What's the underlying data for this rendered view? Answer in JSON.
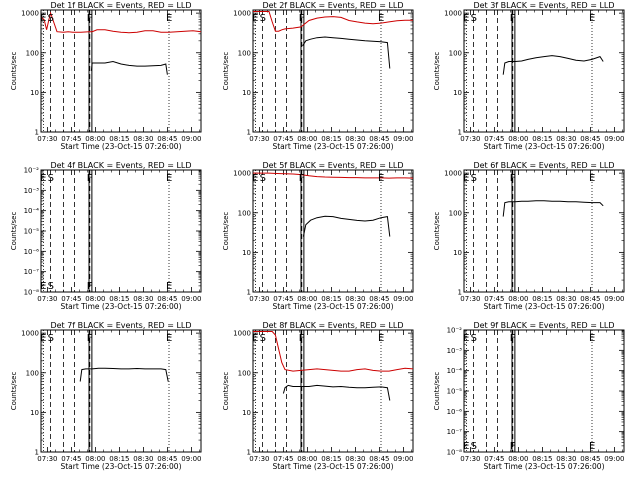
{
  "figure": {
    "xlabel": "Start Time (23-Oct-15 07:26:00)",
    "ylabel": "Counts/sec",
    "x_tick_labels": [
      "07:30",
      "07:45",
      "08:00",
      "08:15",
      "08:30",
      "08:45",
      "09:00"
    ],
    "x_ticks_min": [
      4,
      19,
      34,
      49,
      64,
      79,
      94
    ],
    "x_range_min": [
      0,
      100
    ],
    "colors": {
      "events": "#000000",
      "lld": "#cc0000"
    },
    "flags": [
      {
        "label": "E",
        "x_min": 1.3
      },
      {
        "label": "S",
        "x_min": 6
      },
      {
        "label": "F",
        "x_min": 30.5
      },
      {
        "label": "E",
        "x_min": 80
      }
    ],
    "dashed_lines_min": [
      6,
      14,
      21,
      30.5
    ],
    "dotted_lines_min": [
      1.5,
      80
    ],
    "solid_lines_min": [
      30,
      31.8
    ]
  },
  "chart_data": [
    {
      "type": "line",
      "title": "Det 1f BLACK = Events, RED = LLD",
      "yscale": "log",
      "ylim": [
        1,
        1200
      ],
      "ytick_labels": [
        "1",
        "10",
        "100",
        "1000"
      ],
      "ytick_values": [
        1,
        10,
        100,
        1000
      ],
      "series": [
        {
          "name": "Events",
          "color": "#000000",
          "x": [
            31.5,
            32,
            35,
            40,
            45,
            50,
            55,
            60,
            65,
            70,
            75,
            78,
            79
          ],
          "y": [
            35,
            55,
            55,
            55,
            60,
            52,
            48,
            46,
            46,
            47,
            48,
            52,
            28
          ]
        },
        {
          "name": "LLD",
          "color": "#cc0000",
          "x": [
            0,
            2,
            3.5,
            5,
            6,
            10,
            14,
            17,
            20,
            25,
            30,
            32,
            35,
            40,
            45,
            50,
            55,
            60,
            65,
            70,
            75,
            80,
            85,
            90,
            95,
            100
          ],
          "y": [
            800,
            680,
            380,
            700,
            1000,
            340,
            330,
            340,
            330,
            330,
            340,
            340,
            380,
            380,
            350,
            330,
            320,
            330,
            360,
            360,
            330,
            330,
            340,
            350,
            360,
            340
          ]
        }
      ]
    },
    {
      "type": "line",
      "title": "Det 2f BLACK = Events, RED = LLD",
      "yscale": "log",
      "ylim": [
        1,
        1200
      ],
      "ytick_labels": [
        "1",
        "10",
        "100",
        "1000"
      ],
      "ytick_values": [
        1,
        10,
        100,
        1000
      ],
      "series": [
        {
          "name": "Events",
          "color": "#000000",
          "x": [
            31,
            33,
            36,
            40,
            45,
            50,
            55,
            60,
            65,
            70,
            75,
            80,
            84,
            85.5
          ],
          "y": [
            150,
            200,
            220,
            240,
            250,
            240,
            230,
            220,
            210,
            200,
            195,
            190,
            180,
            40
          ]
        },
        {
          "name": "LLD",
          "color": "#cc0000",
          "x": [
            0,
            1,
            2,
            3,
            4,
            5,
            6,
            8,
            10,
            12,
            14,
            16,
            18,
            20,
            25,
            30,
            35,
            40,
            45,
            50,
            55,
            60,
            65,
            70,
            75,
            80,
            85,
            90,
            95,
            100
          ],
          "y": [
            1100,
            1100,
            1100,
            1100,
            1100,
            1100,
            1100,
            1100,
            1100,
            600,
            350,
            350,
            380,
            400,
            420,
            450,
            650,
            750,
            800,
            820,
            780,
            650,
            600,
            560,
            540,
            560,
            600,
            640,
            660,
            660
          ]
        }
      ]
    },
    {
      "type": "line",
      "title": "Det 3f BLACK = Events, RED = LLD",
      "yscale": "log",
      "ylim": [
        1,
        1200
      ],
      "ytick_labels": [
        "1",
        "10",
        "100",
        "1000"
      ],
      "ytick_values": [
        1,
        10,
        100,
        1000
      ],
      "series": [
        {
          "name": "Events",
          "color": "#000000",
          "x": [
            24.5,
            25.5,
            28,
            32,
            36,
            40,
            45,
            50,
            55,
            60,
            65,
            70,
            75,
            80,
            85,
            87
          ],
          "y": [
            28,
            55,
            60,
            60,
            62,
            68,
            75,
            80,
            85,
            80,
            72,
            65,
            62,
            68,
            80,
            60
          ]
        }
      ]
    },
    {
      "type": "line",
      "title": "Det 4f BLACK = Events, RED = LLD",
      "yscale": "log",
      "ylim": [
        1e-08,
        0.01
      ],
      "ytick_labels": [
        "10⁻⁸",
        "10⁻⁷",
        "10⁻⁶",
        "10⁻⁵",
        "10⁻⁴",
        "10⁻³",
        "10⁻²"
      ],
      "ytick_values": [
        1e-08,
        1e-07,
        1e-06,
        1e-05,
        0.0001,
        0.001,
        0.01
      ],
      "series": []
    },
    {
      "type": "line",
      "title": "Det 5f BLACK = Events, RED = LLD",
      "yscale": "log",
      "ylim": [
        1,
        1200
      ],
      "ytick_labels": [
        "1",
        "10",
        "100",
        "1000"
      ],
      "ytick_values": [
        1,
        10,
        100,
        1000
      ],
      "series": [
        {
          "name": "Events",
          "color": "#000000",
          "x": [
            31.5,
            33,
            36,
            40,
            45,
            50,
            55,
            60,
            65,
            70,
            75,
            80,
            84,
            85.5
          ],
          "y": [
            25,
            50,
            65,
            75,
            82,
            80,
            72,
            68,
            64,
            62,
            65,
            75,
            80,
            25
          ]
        },
        {
          "name": "LLD",
          "color": "#cc0000",
          "x": [
            0,
            3,
            6,
            10,
            15,
            20,
            25,
            30,
            35,
            40,
            45,
            50,
            55,
            60,
            65,
            70,
            75,
            80,
            85,
            90,
            95,
            100
          ],
          "y": [
            1000,
            1000,
            1000,
            1000,
            980,
            960,
            950,
            920,
            860,
            820,
            800,
            790,
            780,
            770,
            770,
            760,
            760,
            760,
            750,
            760,
            760,
            750
          ]
        }
      ]
    },
    {
      "type": "line",
      "title": "Det 6f BLACK = Events, RED = LLD",
      "yscale": "log",
      "ylim": [
        1,
        1200
      ],
      "ytick_labels": [
        "1",
        "10",
        "100",
        "1000"
      ],
      "ytick_values": [
        1,
        10,
        100,
        1000
      ],
      "series": [
        {
          "name": "Events",
          "color": "#000000",
          "x": [
            24.5,
            25.5,
            28,
            32,
            36,
            40,
            45,
            50,
            55,
            60,
            65,
            70,
            75,
            80,
            85,
            87
          ],
          "y": [
            80,
            180,
            190,
            190,
            195,
            195,
            200,
            200,
            195,
            195,
            190,
            190,
            185,
            180,
            180,
            150
          ]
        }
      ]
    },
    {
      "type": "line",
      "title": "Det 7f BLACK = Events, RED = LLD",
      "yscale": "log",
      "ylim": [
        1,
        1200
      ],
      "ytick_labels": [
        "1",
        "10",
        "100",
        "1000"
      ],
      "ytick_values": [
        1,
        10,
        100,
        1000
      ],
      "series": [
        {
          "name": "Events",
          "color": "#000000",
          "x": [
            24.5,
            25.5,
            28,
            32,
            36,
            40,
            45,
            50,
            55,
            60,
            65,
            70,
            75,
            78,
            79.5
          ],
          "y": [
            60,
            120,
            125,
            125,
            130,
            130,
            128,
            125,
            125,
            128,
            125,
            125,
            125,
            120,
            60
          ]
        }
      ]
    },
    {
      "type": "line",
      "title": "Det 8f BLACK = Events, RED = LLD",
      "yscale": "log",
      "ylim": [
        1,
        1200
      ],
      "ytick_labels": [
        "1",
        "10",
        "100",
        "1000"
      ],
      "ytick_values": [
        1,
        10,
        100,
        1000
      ],
      "series": [
        {
          "name": "Events",
          "color": "#000000",
          "x": [
            19,
            20,
            22,
            25,
            30,
            35,
            40,
            45,
            50,
            55,
            60,
            65,
            70,
            75,
            80,
            84,
            85.5
          ],
          "y": [
            30,
            42,
            48,
            45,
            45,
            45,
            48,
            46,
            44,
            45,
            43,
            42,
            42,
            43,
            44,
            42,
            20
          ]
        },
        {
          "name": "LLD",
          "color": "#cc0000",
          "x": [
            0,
            2,
            4,
            6,
            8,
            10,
            12,
            14,
            16,
            18,
            20,
            25,
            30,
            35,
            40,
            45,
            50,
            55,
            60,
            65,
            70,
            75,
            80,
            85,
            90,
            95,
            100
          ],
          "y": [
            1100,
            1100,
            1100,
            1100,
            1100,
            1100,
            1100,
            900,
            400,
            180,
            120,
            110,
            115,
            120,
            125,
            120,
            115,
            110,
            110,
            120,
            125,
            115,
            110,
            110,
            120,
            130,
            125
          ]
        }
      ]
    },
    {
      "type": "line",
      "title": "Det 9f BLACK = Events, RED = LLD",
      "yscale": "log",
      "ylim": [
        1e-08,
        0.01
      ],
      "ytick_labels": [
        "10⁻⁸",
        "10⁻⁷",
        "10⁻⁶",
        "10⁻⁵",
        "10⁻⁴",
        "10⁻³",
        "10⁻²"
      ],
      "ytick_values": [
        1e-08,
        1e-07,
        1e-06,
        1e-05,
        0.0001,
        0.001,
        0.01
      ],
      "series": []
    }
  ]
}
